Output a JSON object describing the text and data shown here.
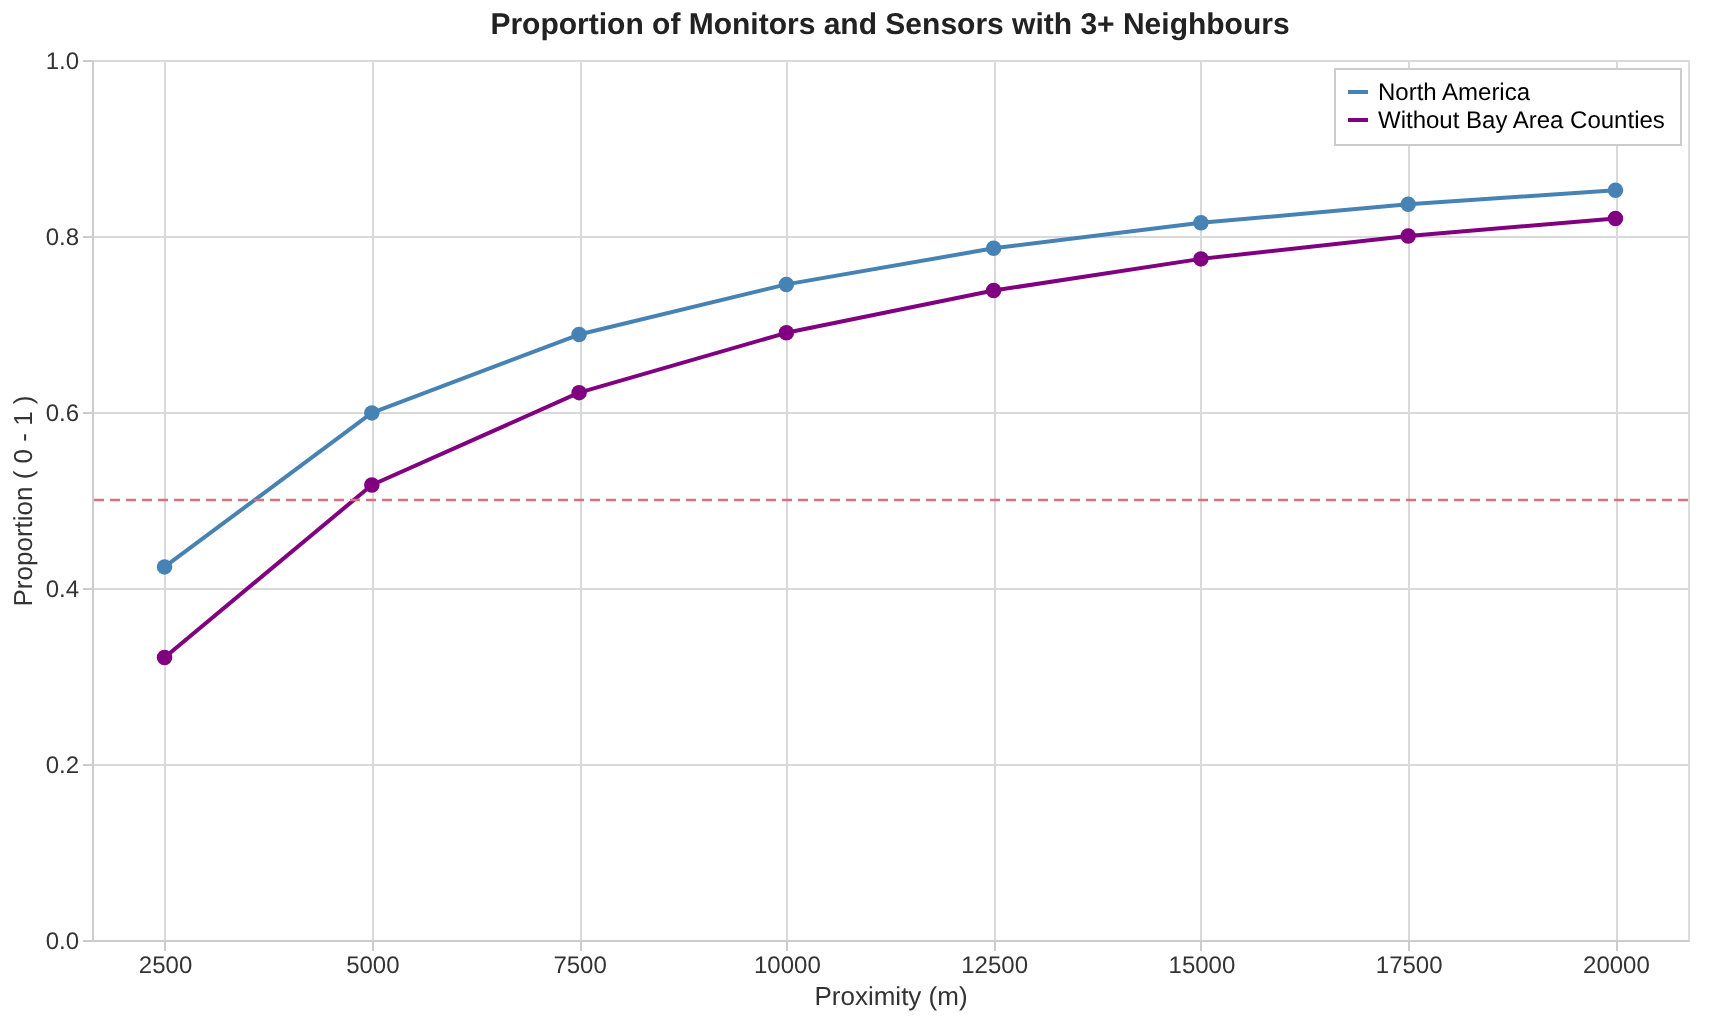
{
  "chart_data": {
    "type": "line",
    "title": "Proportion of Monitors and Sensors with 3+ Neighbours",
    "xlabel": "Proximity (m)",
    "ylabel": "Proportion ( 0 - 1 )",
    "x": [
      2500,
      5000,
      7500,
      10000,
      12500,
      15000,
      17500,
      20000
    ],
    "series": [
      {
        "name": "North America",
        "color": "#4682b4",
        "values": [
          0.424,
          0.599,
          0.688,
          0.745,
          0.786,
          0.815,
          0.836,
          0.852
        ]
      },
      {
        "name": "Without Bay Area Counties",
        "color": "#800080",
        "values": [
          0.321,
          0.517,
          0.622,
          0.69,
          0.738,
          0.774,
          0.8,
          0.82
        ]
      }
    ],
    "xlim": [
      1625,
      20875
    ],
    "xticks": [
      2500,
      5000,
      7500,
      10000,
      12500,
      15000,
      17500,
      20000
    ],
    "ylim": [
      0,
      1
    ],
    "yticks": [
      {
        "value": 0,
        "label": "0.0"
      },
      {
        "value": 0.2,
        "label": "0.2"
      },
      {
        "value": 0.4,
        "label": "0.4"
      },
      {
        "value": 0.6,
        "label": "0.6"
      },
      {
        "value": 0.8,
        "label": "0.8"
      },
      {
        "value": 1,
        "label": "1.0"
      }
    ],
    "ref_lines": [
      {
        "axis": "y",
        "value": 0.5,
        "color": "#d9717b",
        "line_style": "dashed"
      }
    ],
    "grid": true,
    "legend": "top right",
    "marker": "circle",
    "line_style": "solid"
  }
}
